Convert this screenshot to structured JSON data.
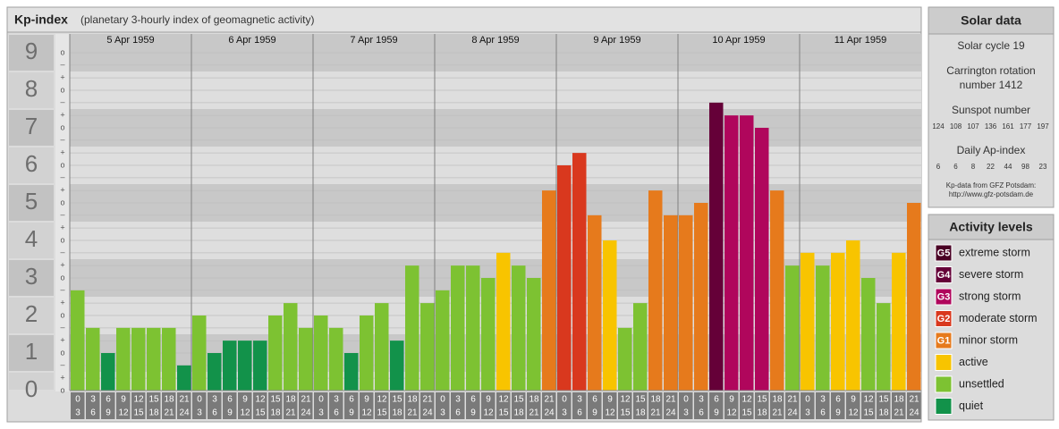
{
  "title": "Kp-index",
  "subtitle": "(planetary 3-hourly index of geomagnetic activity)",
  "chart_data": {
    "type": "bar",
    "ylim": [
      0,
      9.5
    ],
    "yticks": [
      0,
      1,
      2,
      3,
      4,
      5,
      6,
      7,
      8,
      9
    ],
    "minor_yticks": [
      {
        "value": 0,
        "label": "o"
      },
      {
        "value": 0.33,
        "label": "+"
      },
      {
        "value": 0.67,
        "label": "–"
      },
      {
        "value": 1,
        "label": "o"
      },
      {
        "value": 1.33,
        "label": "+"
      },
      {
        "value": 1.67,
        "label": "–"
      },
      {
        "value": 2,
        "label": "o"
      },
      {
        "value": 2.33,
        "label": "+"
      },
      {
        "value": 2.67,
        "label": "–"
      },
      {
        "value": 3,
        "label": "o"
      },
      {
        "value": 3.33,
        "label": "+"
      },
      {
        "value": 3.67,
        "label": "–"
      },
      {
        "value": 4,
        "label": "o"
      },
      {
        "value": 4.33,
        "label": "+"
      },
      {
        "value": 4.67,
        "label": "–"
      },
      {
        "value": 5,
        "label": "o"
      },
      {
        "value": 5.33,
        "label": "+"
      },
      {
        "value": 5.67,
        "label": "–"
      },
      {
        "value": 6,
        "label": "o"
      },
      {
        "value": 6.33,
        "label": "+"
      },
      {
        "value": 6.67,
        "label": "–"
      },
      {
        "value": 7,
        "label": "o"
      },
      {
        "value": 7.33,
        "label": "+"
      },
      {
        "value": 7.67,
        "label": "–"
      },
      {
        "value": 8,
        "label": "o"
      },
      {
        "value": 8.33,
        "label": "+"
      },
      {
        "value": 8.67,
        "label": "–"
      },
      {
        "value": 9,
        "label": "o"
      }
    ],
    "time_slots": [
      {
        "from": "0",
        "to": "3"
      },
      {
        "from": "3",
        "to": "6"
      },
      {
        "from": "6",
        "to": "9"
      },
      {
        "from": "9",
        "to": "12"
      },
      {
        "from": "12",
        "to": "15"
      },
      {
        "from": "15",
        "to": "18"
      },
      {
        "from": "18",
        "to": "21"
      },
      {
        "from": "21",
        "to": "24"
      }
    ],
    "series": [
      {
        "name": "5 Apr 1959",
        "values": [
          2.67,
          1.67,
          1,
          1.67,
          1.67,
          1.67,
          1.67,
          0.67
        ],
        "colors": [
          "#7dc232",
          "#7dc232",
          "#12924a",
          "#7dc232",
          "#7dc232",
          "#7dc232",
          "#7dc232",
          "#12924a"
        ]
      },
      {
        "name": "6 Apr 1959",
        "values": [
          2,
          1,
          1.33,
          1.33,
          1.33,
          2,
          2.33,
          1.67
        ],
        "colors": [
          "#7dc232",
          "#12924a",
          "#12924a",
          "#12924a",
          "#12924a",
          "#7dc232",
          "#7dc232",
          "#7dc232"
        ]
      },
      {
        "name": "7 Apr 1959",
        "values": [
          2,
          1.67,
          1,
          2,
          2.33,
          1.33,
          3.33,
          2.33
        ],
        "colors": [
          "#7dc232",
          "#7dc232",
          "#12924a",
          "#7dc232",
          "#7dc232",
          "#12924a",
          "#7dc232",
          "#7dc232"
        ]
      },
      {
        "name": "8 Apr 1959",
        "values": [
          2.67,
          3.33,
          3.33,
          3,
          3.67,
          3.33,
          3,
          5.33
        ],
        "colors": [
          "#7dc232",
          "#7dc232",
          "#7dc232",
          "#7dc232",
          "#f8c400",
          "#7dc232",
          "#7dc232",
          "#e67a1c"
        ]
      },
      {
        "name": "9 Apr 1959",
        "values": [
          6,
          6.33,
          4.67,
          4,
          1.67,
          2.33,
          5.33,
          4.67
        ],
        "colors": [
          "#d9381e",
          "#d9381e",
          "#e67a1c",
          "#f8c400",
          "#7dc232",
          "#7dc232",
          "#e67a1c",
          "#e67a1c"
        ]
      },
      {
        "name": "10 Apr 1959",
        "values": [
          4.67,
          5,
          7.67,
          7.33,
          7.33,
          7,
          5.33,
          3.33
        ],
        "colors": [
          "#e67a1c",
          "#e67a1c",
          "#650038",
          "#b0065c",
          "#b0065c",
          "#b0065c",
          "#e67a1c",
          "#7dc232"
        ]
      },
      {
        "name": "11 Apr 1959",
        "values": [
          3.67,
          3.33,
          3.67,
          4,
          3,
          2.33,
          3.67,
          5
        ],
        "colors": [
          "#f8c400",
          "#7dc232",
          "#f8c400",
          "#f8c400",
          "#7dc232",
          "#7dc232",
          "#f8c400",
          "#e67a1c"
        ]
      }
    ]
  },
  "solar_data": {
    "title": "Solar data",
    "solar_cycle": "Solar cycle 19",
    "carrington": [
      "Carrington rotation",
      "number 1412"
    ],
    "sunspot_title": "Sunspot number",
    "sunspot_numbers": [
      124,
      108,
      107,
      136,
      161,
      177,
      197
    ],
    "ap_title": "Daily Ap-index",
    "ap_index": [
      6,
      6,
      8,
      22,
      44,
      98,
      23
    ],
    "source": [
      "Kp-data from GFZ Potsdam:",
      "http://www.gfz-potsdam.de"
    ]
  },
  "activity_levels": {
    "title": "Activity levels",
    "levels": [
      {
        "badge": "G5",
        "label": "extreme storm",
        "color": "#4a0024"
      },
      {
        "badge": "G4",
        "label": "severe storm",
        "color": "#650038"
      },
      {
        "badge": "G3",
        "label": "strong storm",
        "color": "#b0065c"
      },
      {
        "badge": "G2",
        "label": "moderate storm",
        "color": "#d9381e"
      },
      {
        "badge": "G1",
        "label": "minor storm",
        "color": "#e67a1c"
      },
      {
        "label": "active",
        "color": "#f8c400"
      },
      {
        "label": "unsettled",
        "color": "#7dc232"
      },
      {
        "label": "quiet",
        "color": "#12924a"
      }
    ]
  }
}
